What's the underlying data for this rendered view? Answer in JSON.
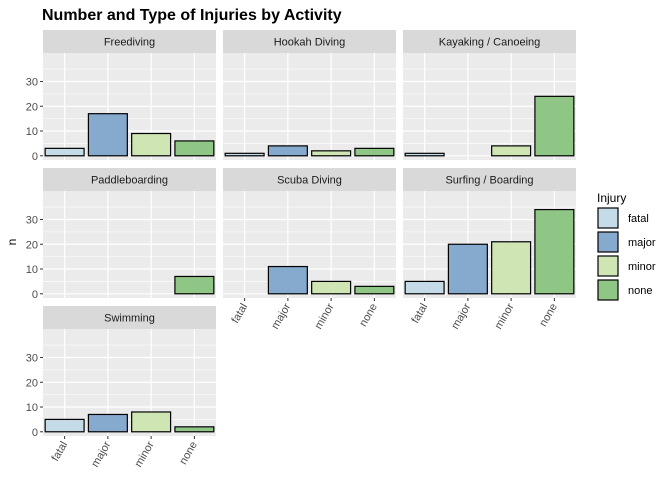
{
  "chart_data": {
    "type": "bar",
    "title": "Number and Type of Injuries by Activity",
    "xlabel": "",
    "ylabel": "n",
    "ylim": [
      -1.7,
      41.5
    ],
    "yticks": [
      0,
      10,
      20,
      30
    ],
    "categories": [
      "fatal",
      "major",
      "minor",
      "none"
    ],
    "legend": {
      "title": "Injury",
      "position": "right",
      "entries": [
        {
          "name": "fatal",
          "color": "#c6dbe8"
        },
        {
          "name": "major",
          "color": "#86a9ce"
        },
        {
          "name": "minor",
          "color": "#cfe5b3"
        },
        {
          "name": "none",
          "color": "#8fc585"
        }
      ]
    },
    "panels": [
      {
        "name": "Freediving",
        "values": [
          3,
          17,
          9,
          6
        ]
      },
      {
        "name": "Hookah Diving",
        "values": [
          1,
          4,
          2,
          3
        ]
      },
      {
        "name": "Kayaking / Canoeing",
        "values": [
          1,
          null,
          4,
          24
        ]
      },
      {
        "name": "Paddleboarding",
        "values": [
          null,
          null,
          null,
          7
        ]
      },
      {
        "name": "Scuba Diving",
        "values": [
          null,
          11,
          5,
          3
        ]
      },
      {
        "name": "Surfing / Boarding",
        "values": [
          5,
          20,
          21,
          34
        ]
      },
      {
        "name": "Swimming",
        "values": [
          5,
          7,
          8,
          2
        ]
      }
    ],
    "grid": true,
    "background": "#ebebeb",
    "strip_background": "#d9d9d9"
  }
}
